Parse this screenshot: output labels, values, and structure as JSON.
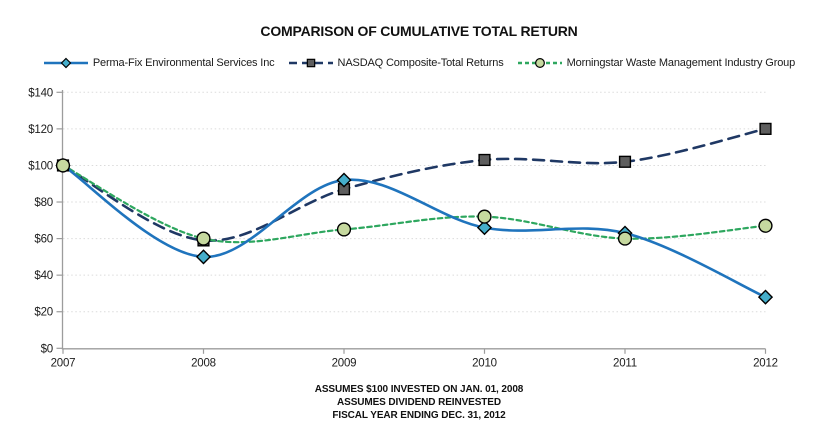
{
  "chart_data": {
    "type": "line",
    "title": "COMPARISON OF CUMULATIVE TOTAL RETURN",
    "x": [
      2007,
      2008,
      2009,
      2010,
      2011,
      2012
    ],
    "x_tick_labels": [
      "2007",
      "2008",
      "2009",
      "2010",
      "2011",
      "2012"
    ],
    "y_ticks": [
      0,
      20,
      40,
      60,
      80,
      100,
      120,
      140
    ],
    "y_tick_labels": [
      "$0",
      "$20",
      "$40",
      "$60",
      "$80",
      "$100",
      "$120",
      "$140"
    ],
    "ylim": [
      0,
      140
    ],
    "grid": "horizontal-dotted",
    "legend_position": "top-center",
    "series": [
      {
        "name": "Perma-Fix Environmental Services Inc",
        "values": [
          100,
          50,
          92,
          66,
          63,
          28
        ],
        "line_color": "#1F74BD",
        "line_style": "solid",
        "marker": "diamond",
        "marker_fill": "#45AECB",
        "marker_stroke": "#000000"
      },
      {
        "name": "NASDAQ Composite-Total Returns",
        "values": [
          100,
          59,
          87,
          103,
          102,
          120
        ],
        "line_color": "#1F3864",
        "line_style": "long-dash",
        "marker": "square",
        "marker_fill": "#5E5E5E",
        "marker_stroke": "#000000"
      },
      {
        "name": "Morningstar Waste Management Industry Group",
        "values": [
          100,
          60,
          65,
          72,
          60,
          67
        ],
        "line_color": "#2EA75F",
        "line_style": "short-dash",
        "marker": "circle",
        "marker_fill": "#C6D99F",
        "marker_stroke": "#000000"
      }
    ],
    "footnotes": [
      "ASSUMES $100 INVESTED ON JAN. 01, 2008",
      "ASSUMES DIVIDEND REINVESTED",
      "FISCAL YEAR ENDING DEC. 31, 2012"
    ],
    "axis_color": "#9C9C9C",
    "gridline_color": "#DBDBDB"
  }
}
